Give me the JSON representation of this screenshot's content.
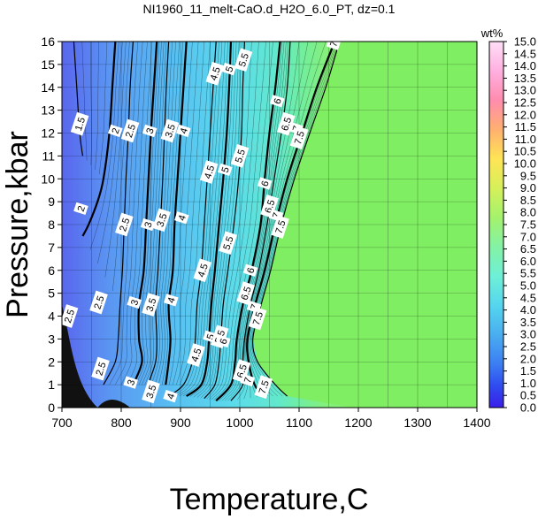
{
  "chart_data": {
    "type": "contour",
    "title": "NI1960_11_melt-CaO.d_H2O_6.0_PT, dz=0.1",
    "xlabel": "Temperature,C",
    "ylabel": "Pressure,kbar",
    "xlim": [
      700,
      1400
    ],
    "ylim": [
      0,
      16
    ],
    "x_ticks": [
      "700",
      "800",
      "900",
      "1000",
      "1100",
      "1200",
      "1300",
      "1400"
    ],
    "y_ticks": [
      "0",
      "1",
      "2",
      "3",
      "4",
      "5",
      "6",
      "7",
      "8",
      "9",
      "10",
      "11",
      "12",
      "13",
      "14",
      "15",
      "16"
    ],
    "grid": true,
    "colorbar": {
      "unit": "wt%",
      "range": [
        0.0,
        15.0
      ],
      "ticks": [
        "0.0",
        "0.5",
        "1.0",
        "1.5",
        "2.0",
        "2.5",
        "3.0",
        "3.5",
        "4.0",
        "4.5",
        "5.0",
        "5.5",
        "6.0",
        "6.5",
        "7.0",
        "7.5",
        "8.0",
        "8.5",
        "9.0",
        "9.5",
        "10.0",
        "10.5",
        "11.0",
        "11.5",
        "12.0",
        "12.5",
        "13.0",
        "13.5",
        "14.0",
        "14.5",
        "15.0"
      ]
    },
    "saturated_value": 6.0,
    "contours": [
      {
        "value": 1.5,
        "label": "1.5",
        "points": [
          [
            720,
            16
          ],
          [
            725,
            14
          ],
          [
            730,
            12
          ],
          [
            735,
            11
          ]
        ]
      },
      {
        "value": 2,
        "label": "2",
        "points": [
          [
            790,
            16
          ],
          [
            785,
            14
          ],
          [
            780,
            12
          ],
          [
            770,
            10
          ],
          [
            760,
            9
          ],
          [
            745,
            8
          ],
          [
            735,
            7.5
          ]
        ]
      },
      {
        "value": 2.5,
        "label": "2.5",
        "points": [
          [
            820,
            16
          ],
          [
            815,
            14
          ],
          [
            812,
            12
          ],
          [
            808,
            10
          ],
          [
            805,
            8
          ],
          [
            802,
            6
          ],
          [
            798,
            4.5
          ],
          [
            795,
            3
          ],
          [
            790,
            2
          ],
          [
            770,
            1
          ]
        ]
      },
      {
        "value": 3,
        "label": "3",
        "points": [
          [
            860,
            16
          ],
          [
            855,
            14
          ],
          [
            850,
            12
          ],
          [
            846,
            10
          ],
          [
            842,
            8
          ],
          [
            838,
            6
          ],
          [
            830,
            4.5
          ],
          [
            830,
            3
          ],
          [
            835,
            2
          ],
          [
            820,
            1
          ]
        ]
      },
      {
        "value": 3.5,
        "label": "3.5",
        "points": [
          [
            880,
            16
          ],
          [
            876,
            14
          ],
          [
            873,
            12
          ],
          [
            870,
            10
          ],
          [
            866,
            8
          ],
          [
            862,
            6
          ],
          [
            858,
            4.5
          ],
          [
            860,
            3
          ],
          [
            858,
            2
          ],
          [
            845,
            1
          ]
        ]
      },
      {
        "value": 4,
        "label": "4",
        "points": [
          [
            910,
            16
          ],
          [
            905,
            14
          ],
          [
            900,
            12
          ],
          [
            895,
            10
          ],
          [
            890,
            8
          ],
          [
            887,
            6
          ],
          [
            880,
            4.5
          ],
          [
            883,
            3
          ],
          [
            880,
            2
          ],
          [
            875,
            1
          ]
        ]
      },
      {
        "value": 4.5,
        "label": "4.5",
        "points": [
          [
            960,
            16
          ],
          [
            955,
            14
          ],
          [
            950,
            12
          ],
          [
            945,
            10
          ],
          [
            940,
            8
          ],
          [
            935,
            6
          ],
          [
            928,
            4.5
          ],
          [
            925,
            3
          ],
          [
            920,
            2
          ],
          [
            905,
            1
          ],
          [
            880,
            0.5
          ]
        ]
      },
      {
        "value": 5,
        "label": "5",
        "points": [
          [
            985,
            16
          ],
          [
            982,
            14
          ],
          [
            978,
            12
          ],
          [
            972,
            10
          ],
          [
            965,
            8
          ],
          [
            958,
            6
          ],
          [
            952,
            4.5
          ],
          [
            948,
            3
          ],
          [
            945,
            2
          ],
          [
            935,
            1
          ],
          [
            910,
            0.5
          ]
        ]
      },
      {
        "value": 5.5,
        "label": "5.5",
        "points": [
          [
            1008,
            16
          ],
          [
            1005,
            14
          ],
          [
            1003,
            12
          ],
          [
            998,
            10
          ],
          [
            990,
            8
          ],
          [
            980,
            6
          ],
          [
            972,
            4.5
          ],
          [
            968,
            3
          ],
          [
            965,
            2
          ],
          [
            958,
            1
          ],
          [
            940,
            0.4
          ]
        ]
      },
      {
        "value": 6,
        "label": "6",
        "points": [
          [
            1068,
            16
          ],
          [
            1060,
            14
          ],
          [
            1050,
            12
          ],
          [
            1042,
            10
          ],
          [
            1035,
            8
          ],
          [
            1020,
            6
          ],
          [
            1005,
            4.5
          ],
          [
            995,
            3
          ],
          [
            992,
            2
          ],
          [
            985,
            1
          ],
          [
            960,
            0.3
          ]
        ]
      },
      {
        "value": 6.5,
        "label": "6.5",
        "points": [
          [
            1085,
            16
          ],
          [
            1080,
            14
          ],
          [
            1070,
            12
          ],
          [
            1058,
            10
          ],
          [
            1046,
            8
          ],
          [
            1032,
            6
          ],
          [
            1018,
            4.5
          ],
          [
            1008,
            3
          ],
          [
            1005,
            2
          ],
          [
            1005,
            1
          ],
          [
            985,
            0.3
          ]
        ]
      },
      {
        "value": 7,
        "label": "7",
        "points": [
          [
            1160,
            16
          ],
          [
            1130,
            14
          ],
          [
            1105,
            12
          ],
          [
            1080,
            10
          ],
          [
            1060,
            8
          ],
          [
            1042,
            6
          ],
          [
            1026,
            4.5
          ],
          [
            1013,
            3
          ],
          [
            1015,
            2
          ],
          [
            1025,
            1
          ],
          [
            1040,
            0.5
          ]
        ]
      },
      {
        "value": 7.5,
        "label": "7.5",
        "points": [
          [
            1168,
            16
          ],
          [
            1145,
            14
          ],
          [
            1118,
            12
          ],
          [
            1092,
            10
          ],
          [
            1070,
            8
          ],
          [
            1052,
            6
          ],
          [
            1036,
            4.5
          ],
          [
            1022,
            3
          ],
          [
            1030,
            2
          ],
          [
            1060,
            1
          ],
          [
            1080,
            0.5
          ]
        ]
      }
    ],
    "contour_labels": [
      {
        "text": "1.5",
        "x": 730,
        "y": 12.4
      },
      {
        "text": "2",
        "x": 732,
        "y": 8.7
      },
      {
        "text": "2.5",
        "x": 712,
        "y": 4.0
      },
      {
        "text": "2.5",
        "x": 762,
        "y": 4.6
      },
      {
        "text": "2.5",
        "x": 765,
        "y": 1.7
      },
      {
        "text": "2",
        "x": 790,
        "y": 12.1
      },
      {
        "text": "2.5",
        "x": 805,
        "y": 8.0
      },
      {
        "text": "2.5",
        "x": 815,
        "y": 12.1
      },
      {
        "text": "3",
        "x": 822,
        "y": 4.6
      },
      {
        "text": "3",
        "x": 816,
        "y": 1.1
      },
      {
        "text": "3",
        "x": 848,
        "y": 12.1
      },
      {
        "text": "3",
        "x": 845,
        "y": 8.0
      },
      {
        "text": "3.5",
        "x": 850,
        "y": 4.5
      },
      {
        "text": "3.5",
        "x": 850,
        "y": 0.7
      },
      {
        "text": "3.5",
        "x": 868,
        "y": 8.2
      },
      {
        "text": "3.5",
        "x": 882,
        "y": 12.1
      },
      {
        "text": "4",
        "x": 902,
        "y": 8.3
      },
      {
        "text": "4",
        "x": 884,
        "y": 4.7
      },
      {
        "text": "4",
        "x": 905,
        "y": 12.1
      },
      {
        "text": "4",
        "x": 883,
        "y": 0.5
      },
      {
        "text": "4.5",
        "x": 958,
        "y": 14.6
      },
      {
        "text": "4.5",
        "x": 948,
        "y": 10.3
      },
      {
        "text": "4.5",
        "x": 937,
        "y": 6.0
      },
      {
        "text": "4.5",
        "x": 926,
        "y": 2.3
      },
      {
        "text": "5",
        "x": 982,
        "y": 14.8
      },
      {
        "text": "5",
        "x": 975,
        "y": 10.4
      },
      {
        "text": "5",
        "x": 950,
        "y": 3.1
      },
      {
        "text": "5.5",
        "x": 1006,
        "y": 15.2
      },
      {
        "text": "5.5",
        "x": 1000,
        "y": 11.0
      },
      {
        "text": "5.5",
        "x": 980,
        "y": 7.2
      },
      {
        "text": "5.5",
        "x": 966,
        "y": 3.1
      },
      {
        "text": "6",
        "x": 1063,
        "y": 13.4
      },
      {
        "text": "6",
        "x": 1042,
        "y": 9.8
      },
      {
        "text": "6",
        "x": 1018,
        "y": 6.0
      },
      {
        "text": "6",
        "x": 972,
        "y": 2.9
      },
      {
        "text": "6.5",
        "x": 1078,
        "y": 12.4
      },
      {
        "text": "6.5",
        "x": 1050,
        "y": 8.8
      },
      {
        "text": "6.5",
        "x": 1010,
        "y": 5.0
      },
      {
        "text": "6.5",
        "x": 1003,
        "y": 1.6
      },
      {
        "text": "7",
        "x": 1158,
        "y": 15.9
      },
      {
        "text": "7",
        "x": 1095,
        "y": 12.2
      },
      {
        "text": "7",
        "x": 1061,
        "y": 8.4
      },
      {
        "text": "7",
        "x": 1024,
        "y": 4.4
      },
      {
        "text": "7",
        "x": 1013,
        "y": 1.2
      },
      {
        "text": "7.5",
        "x": 1100,
        "y": 11.8
      },
      {
        "text": "7.5",
        "x": 1068,
        "y": 7.9
      },
      {
        "text": "7.5",
        "x": 1030,
        "y": 3.9
      },
      {
        "text": "7.5",
        "x": 1040,
        "y": 0.9
      }
    ]
  }
}
